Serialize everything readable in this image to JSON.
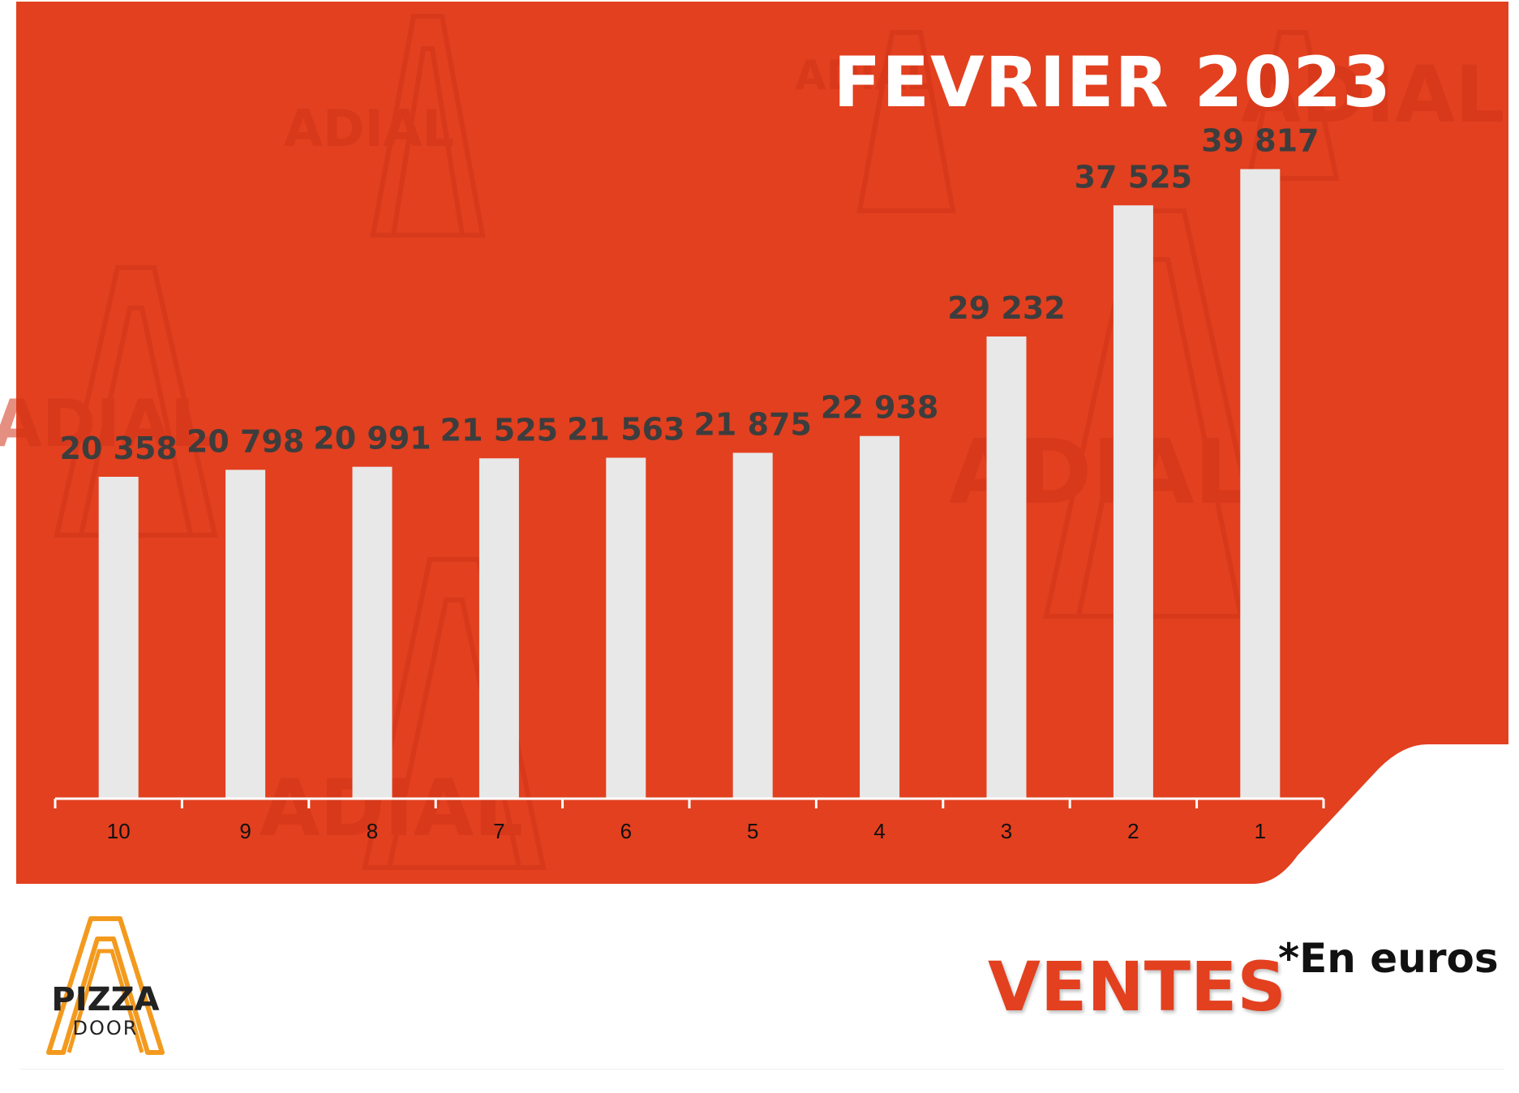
{
  "colors": {
    "background": "#e2401f",
    "bar": "#e8e8e8",
    "value_label": "#3d3d3d",
    "axis": "#ffffff",
    "title": "#ffffff",
    "ventes": "#e2401f",
    "watermark": "#cf3418"
  },
  "header": {
    "title": "FEVRIER 2023"
  },
  "footer": {
    "ventes_label": "VENTES",
    "unit_note": "*En euros",
    "logo_pizza": "PIZZA",
    "logo_door": "DOOR"
  },
  "watermark_text": "ADIAL",
  "chart_data": {
    "type": "bar",
    "title": "FEVRIER 2023",
    "xlabel": "",
    "ylabel": "",
    "categories": [
      "10",
      "9",
      "8",
      "7",
      "6",
      "5",
      "4",
      "3",
      "2",
      "1"
    ],
    "values": [
      20358,
      20798,
      20991,
      21525,
      21563,
      21875,
      22938,
      29232,
      37525,
      39817
    ],
    "value_labels": [
      "20 358",
      "20 798",
      "20 991",
      "21 525",
      "21 563",
      "21 875",
      "22 938",
      "29 232",
      "37 525",
      "39 817"
    ],
    "ylim": [
      0,
      40000
    ],
    "grid": false,
    "legend": "none"
  }
}
